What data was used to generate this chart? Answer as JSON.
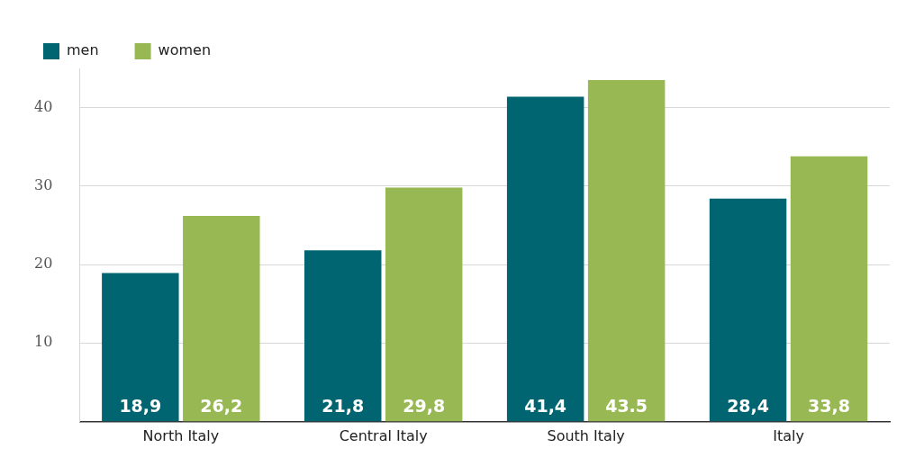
{
  "chart_data": {
    "type": "bar",
    "categories": [
      "North Italy",
      "Central Italy",
      "South Italy",
      "Italy"
    ],
    "series": [
      {
        "name": "men",
        "color": "#006570",
        "values": [
          18.9,
          21.8,
          41.4,
          28.4
        ],
        "value_labels": [
          "18,9",
          "21,8",
          "41,4",
          "28,4"
        ]
      },
      {
        "name": "women",
        "color": "#97b852",
        "values": [
          26.2,
          29.8,
          43.5,
          33.8
        ],
        "value_labels": [
          "26,2",
          "29,8",
          "43.5",
          "33,8"
        ]
      }
    ],
    "ylim": [
      0,
      45
    ],
    "yticks": [
      10,
      20,
      30,
      40
    ],
    "grid": "y",
    "legend": "top left"
  }
}
